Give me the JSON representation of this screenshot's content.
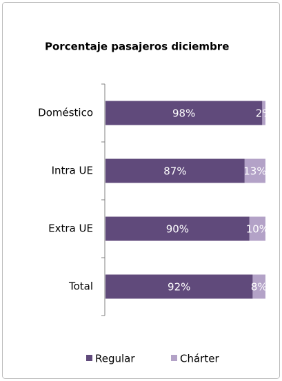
{
  "chart_data": {
    "type": "stacked_barh",
    "title": "Porcentaje pasajeros diciembre",
    "categories": [
      "Doméstico",
      "Intra UE",
      "Extra UE",
      "Total"
    ],
    "xlim": [
      0,
      100
    ],
    "series": [
      {
        "name": "Regular",
        "color": "#604a7b",
        "values": [
          98,
          87,
          90,
          92
        ],
        "value_labels": [
          "98%",
          "87%",
          "90%",
          "92%"
        ]
      },
      {
        "name": "Chárter",
        "color": "#b3a2c7",
        "values": [
          2,
          13,
          10,
          8
        ],
        "value_labels": [
          "2%",
          "13%",
          "10%",
          "8%"
        ]
      }
    ],
    "legend": "bottom"
  }
}
